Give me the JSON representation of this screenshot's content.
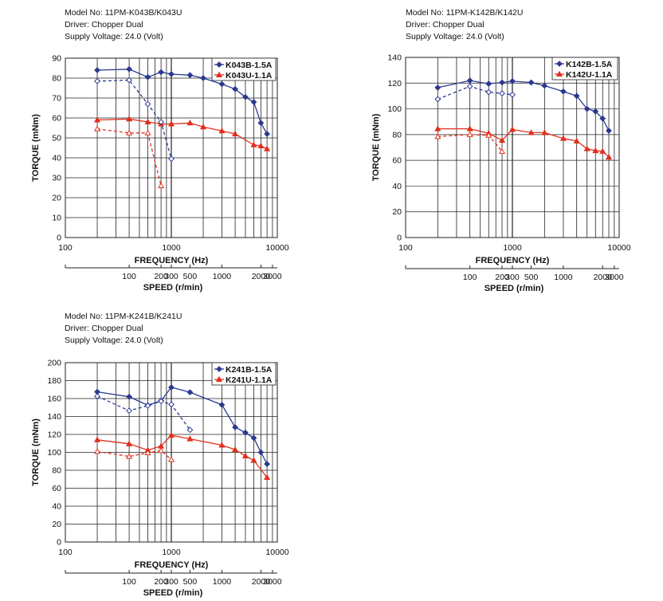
{
  "chart_data": [
    {
      "type": "line",
      "info": [
        "Model No: 11PM-K043B/K043U",
        "Driver: Chopper Dual",
        "Supply Voltage: 24.0 (Volt)"
      ],
      "ylabel": "TORQUE (mNm)",
      "xlabel": "FREQUENCY (Hz)",
      "x2label": "SPEED (r/min)",
      "x_scale": "log",
      "xlim": [
        100,
        10000
      ],
      "ylim": [
        0,
        90
      ],
      "y_ticks": [
        0,
        10,
        20,
        30,
        40,
        50,
        60,
        70,
        80,
        90
      ],
      "x_tick_labels": [
        "100",
        "1000",
        "10000"
      ],
      "speed_tick_labels": [
        "100",
        "200",
        "300",
        "500",
        "1000",
        "2000",
        "3000"
      ],
      "legend": "top-right",
      "grid": true,
      "series": [
        {
          "name": "K043B-1.5A",
          "color": "#2b3990",
          "style": "solid",
          "marker": "diamond-filled",
          "x": [
            200,
            400,
            600,
            800,
            1000,
            1500,
            2000,
            3000,
            4000,
            5000,
            6000,
            7000,
            8000
          ],
          "y": [
            84,
            84.5,
            80.5,
            83,
            82,
            81.5,
            80,
            77,
            74.5,
            70.5,
            68,
            57.5,
            52
          ]
        },
        {
          "name": "K043U-1.1A",
          "color": "#e0301e",
          "style": "solid",
          "marker": "triangle-filled",
          "x": [
            200,
            400,
            600,
            800,
            1000,
            1500,
            2000,
            3000,
            4000,
            6000,
            7000,
            8000
          ],
          "y": [
            59,
            59.5,
            58,
            57,
            57,
            57.5,
            55.5,
            53.5,
            52,
            46.5,
            46,
            44.5
          ]
        },
        {
          "color": "#2b3990",
          "style": "dashed",
          "marker": "diamond-open",
          "x": [
            200,
            400,
            600,
            800,
            1000
          ],
          "y": [
            78.5,
            79,
            67,
            58,
            39.5
          ]
        },
        {
          "color": "#e0301e",
          "style": "dashed",
          "marker": "triangle-open",
          "x": [
            200,
            400,
            600,
            800
          ],
          "y": [
            54.5,
            52.5,
            52.5,
            26
          ]
        }
      ]
    },
    {
      "type": "line",
      "info": [
        "Model No: 11PM-K142B/K142U",
        "Driver: Chopper Dual",
        "Supply Voltage: 24.0 (Volt)"
      ],
      "ylabel": "TORQUE (mNm)",
      "xlabel": "FREQUENCY (Hz)",
      "x2label": "SPEED (r/min)",
      "x_scale": "log",
      "xlim": [
        100,
        10000
      ],
      "ylim": [
        0,
        140
      ],
      "y_ticks": [
        0,
        20,
        40,
        60,
        80,
        100,
        120,
        140
      ],
      "x_tick_labels": [
        "100",
        "1000",
        "10000"
      ],
      "speed_tick_labels": [
        "100",
        "200",
        "300",
        "500",
        "1000",
        "2000",
        "3000"
      ],
      "legend": "top-right",
      "grid": true,
      "series": [
        {
          "name": "K142B-1.5A",
          "color": "#2b3990",
          "style": "solid",
          "marker": "diamond-filled",
          "x": [
            200,
            400,
            600,
            800,
            1000,
            1500,
            2000,
            3000,
            4000,
            5000,
            6000,
            7000,
            8000
          ],
          "y": [
            116.5,
            122,
            119.5,
            120.5,
            121.5,
            120.5,
            118,
            113.5,
            110,
            100,
            98,
            92.5,
            83
          ]
        },
        {
          "name": "K142U-1.1A",
          "color": "#e0301e",
          "style": "solid",
          "marker": "triangle-filled",
          "x": [
            200,
            400,
            600,
            800,
            1000,
            1500,
            2000,
            3000,
            4000,
            5000,
            6000,
            7000,
            8000
          ],
          "y": [
            84.5,
            84.5,
            81,
            75.5,
            84,
            81.5,
            81.5,
            77,
            75,
            69,
            67.5,
            67,
            62.5
          ]
        },
        {
          "color": "#2b3990",
          "style": "dashed",
          "marker": "diamond-open",
          "x": [
            200,
            400,
            600,
            800,
            1000
          ],
          "y": [
            107.5,
            117.5,
            113,
            112,
            111
          ]
        },
        {
          "color": "#e0301e",
          "style": "dashed",
          "marker": "triangle-open",
          "x": [
            200,
            400,
            600,
            800
          ],
          "y": [
            78.5,
            80,
            79.5,
            67
          ]
        }
      ]
    },
    {
      "type": "line",
      "info": [
        "Model No: 11PM-K241B/K241U",
        "Driver: Chopper Dual",
        "Supply Voltage: 24.0 (Volt)"
      ],
      "ylabel": "TORQUE (mNm)",
      "xlabel": "FREQUENCY (Hz)",
      "x2label": "SPEED (r/min)",
      "x_scale": "log",
      "xlim": [
        100,
        10000
      ],
      "ylim": [
        0,
        200
      ],
      "y_ticks": [
        0,
        20,
        40,
        60,
        80,
        100,
        120,
        140,
        160,
        180,
        200
      ],
      "x_tick_labels": [
        "100",
        "1000",
        "10000"
      ],
      "speed_tick_labels": [
        "100",
        "200",
        "300",
        "500",
        "1000",
        "2000",
        "3000"
      ],
      "legend": "top-right",
      "grid": true,
      "series": [
        {
          "name": "K241B-1.5A",
          "color": "#2b3990",
          "style": "solid",
          "marker": "diamond-filled",
          "x": [
            200,
            400,
            600,
            800,
            1000,
            1500,
            3000,
            4000,
            5000,
            6000,
            7000,
            8000
          ],
          "y": [
            167.5,
            162,
            152.5,
            157.5,
            172.5,
            167,
            153,
            128,
            122,
            116,
            100,
            87
          ]
        },
        {
          "name": "K241U-1.1A",
          "color": "#e0301e",
          "style": "solid",
          "marker": "triangle-filled",
          "x": [
            200,
            400,
            600,
            800,
            1000,
            1500,
            3000,
            4000,
            5000,
            6000,
            8000
          ],
          "y": [
            114,
            109.5,
            102.5,
            107,
            119,
            115,
            108,
            103,
            96,
            91,
            72
          ]
        },
        {
          "color": "#2b3990",
          "style": "dashed",
          "marker": "diamond-open",
          "x": [
            200,
            400,
            600,
            800,
            1000,
            1500
          ],
          "y": [
            162.5,
            146.5,
            152,
            157,
            153.5,
            125
          ]
        },
        {
          "color": "#e0301e",
          "style": "dashed",
          "marker": "triangle-open",
          "x": [
            200,
            400,
            600,
            800,
            1000
          ],
          "y": [
            101,
            95.5,
            99.5,
            102,
            92
          ]
        }
      ]
    }
  ]
}
